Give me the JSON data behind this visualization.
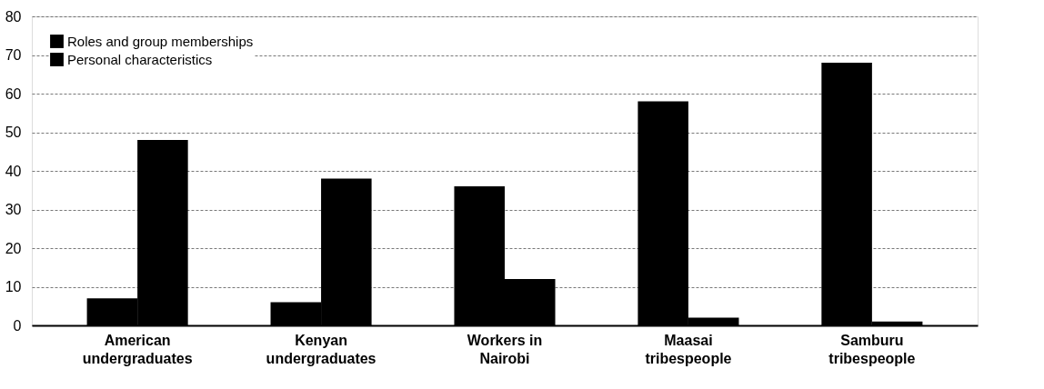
{
  "chart_data": {
    "type": "bar",
    "categories": [
      "American undergraduates",
      "Kenyan undergraduates",
      "Workers in Nairobi",
      "Maasai tribespeople",
      "Samburu tribespeople"
    ],
    "series": [
      {
        "name": "Roles and group memberships",
        "color": "#000000",
        "values": [
          7,
          6,
          36,
          58,
          68
        ]
      },
      {
        "name": "Personal characteristics",
        "color": "#000000",
        "values": [
          48,
          38,
          12,
          2,
          1
        ]
      }
    ],
    "ylim": [
      0,
      80
    ],
    "yticks": [
      0,
      10,
      20,
      30,
      40,
      50,
      60,
      70,
      80
    ],
    "grid": "y",
    "legend": "top left"
  }
}
